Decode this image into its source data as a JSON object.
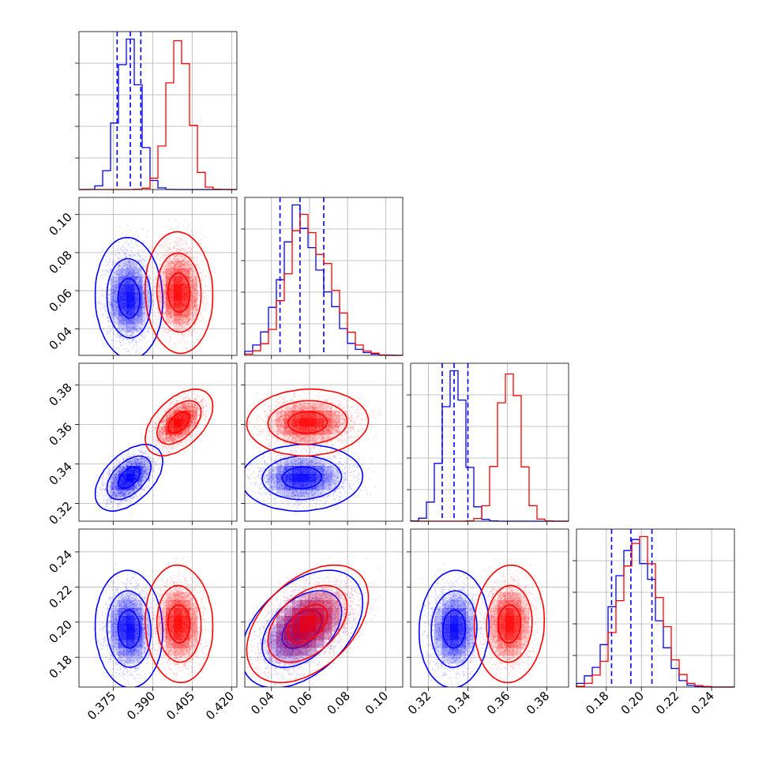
{
  "chart_data": {
    "type": "corner",
    "title": "",
    "dims": [
      {
        "xlim": [
          0.362,
          0.422
        ],
        "ticks": [
          0.375,
          0.39,
          0.405,
          0.42
        ],
        "tick_labels": [
          "0.375",
          "0.390",
          "0.405",
          "0.420"
        ]
      },
      {
        "xlim": [
          0.026,
          0.109
        ],
        "ticks": [
          0.04,
          0.06,
          0.08,
          0.1
        ],
        "tick_labels": [
          "0.04",
          "0.06",
          "0.08",
          "0.10"
        ]
      },
      {
        "xlim": [
          0.311,
          0.391
        ],
        "ticks": [
          0.32,
          0.34,
          0.36,
          0.38
        ],
        "tick_labels": [
          "0.32",
          "0.34",
          "0.36",
          "0.38"
        ]
      },
      {
        "xlim": [
          0.163,
          0.253
        ],
        "ticks": [
          0.18,
          0.2,
          0.22,
          0.24
        ],
        "tick_labels": [
          "0.18",
          "0.20",
          "0.22",
          "0.24"
        ]
      }
    ],
    "series": [
      {
        "name": "blue",
        "color": "#0000ff",
        "mean": [
          0.381,
          0.056,
          0.333,
          0.196
        ],
        "sd": [
          0.004,
          0.01,
          0.0055,
          0.011
        ],
        "rho": [
          [
            1,
            -0.05,
            0.5,
            -0.05
          ],
          [
            -0.05,
            1,
            0.05,
            0.45
          ],
          [
            0.5,
            0.05,
            1,
            0.05
          ],
          [
            -0.05,
            0.45,
            0.05,
            1
          ]
        ],
        "quantiles": [
          [
            0.3765,
            0.3815,
            0.3855
          ],
          [
            0.0445,
            0.055,
            0.0675
          ],
          [
            0.327,
            0.333,
            0.34
          ],
          [
            0.183,
            0.194,
            0.206
          ]
        ]
      },
      {
        "name": "red",
        "color": "#ff0000",
        "mean": [
          0.4,
          0.059,
          0.361,
          0.199
        ],
        "sd": [
          0.004,
          0.01,
          0.0055,
          0.011
        ],
        "rho": [
          [
            1,
            -0.05,
            0.5,
            -0.05
          ],
          [
            -0.05,
            1,
            0.05,
            0.45
          ],
          [
            0.5,
            0.05,
            1,
            0.05
          ],
          [
            -0.05,
            0.45,
            0.05,
            1
          ]
        ],
        "quantiles": null
      }
    ],
    "grid": true,
    "contour_levels": [
      0.39,
      0.86,
      0.99
    ]
  }
}
